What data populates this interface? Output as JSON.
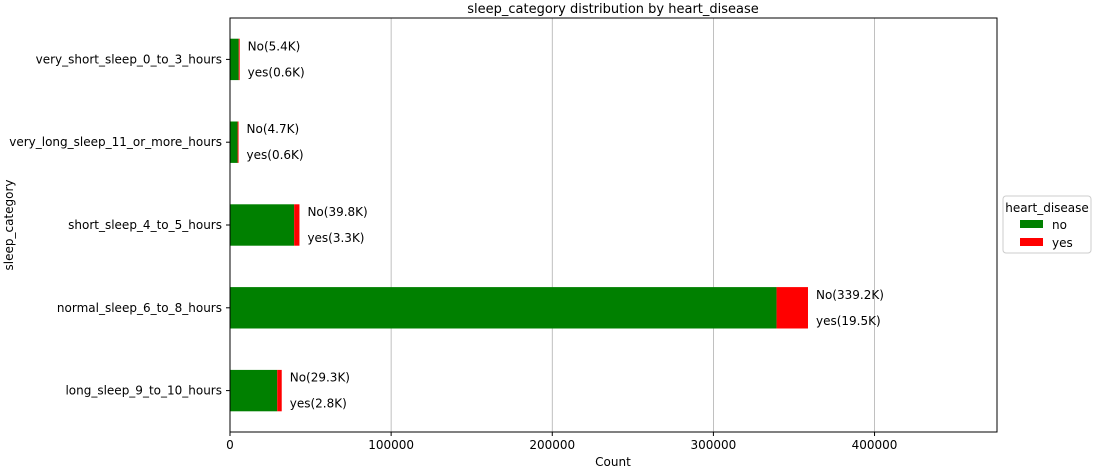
{
  "chart_data": {
    "type": "bar",
    "orientation": "horizontal",
    "stacked": true,
    "title": "sleep_category distribution by heart_disease",
    "xlabel": "Count",
    "ylabel": "sleep_category",
    "xlim": [
      0,
      476000
    ],
    "xticks": [
      0,
      100000,
      200000,
      300000,
      400000
    ],
    "xtick_labels": [
      "0",
      "100000",
      "200000",
      "300000",
      "400000"
    ],
    "grid": "vertical",
    "categories": [
      "long_sleep_9_to_10_hours",
      "normal_sleep_6_to_8_hours",
      "short_sleep_4_to_5_hours",
      "very_long_sleep_11_or_more_hours",
      "very_short_sleep_0_to_3_hours"
    ],
    "series": [
      {
        "name": "no",
        "color": "#008000",
        "values": [
          29300,
          339200,
          39800,
          4700,
          5400
        ]
      },
      {
        "name": "yes",
        "color": "#ff0000",
        "values": [
          2800,
          19500,
          3300,
          600,
          600
        ]
      }
    ],
    "annotations": [
      {
        "no": "No(29.3K)",
        "yes": "yes(2.8K)"
      },
      {
        "no": "No(339.2K)",
        "yes": "yes(19.5K)"
      },
      {
        "no": "No(39.8K)",
        "yes": "yes(3.3K)"
      },
      {
        "no": "No(4.7K)",
        "yes": "yes(0.6K)"
      },
      {
        "no": "No(5.4K)",
        "yes": "yes(0.6K)"
      }
    ],
    "legend": {
      "title": "heart_disease",
      "placement": "right-outside",
      "entries": [
        "no",
        "yes"
      ]
    }
  }
}
